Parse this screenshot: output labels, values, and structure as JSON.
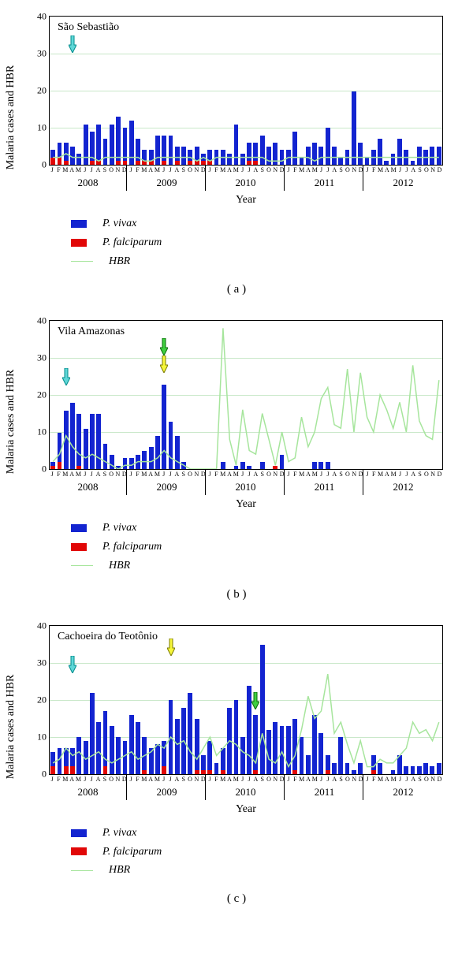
{
  "global": {
    "ylim": [
      0,
      40
    ],
    "yticks": [
      0,
      10,
      20,
      30,
      40
    ],
    "ylabel": "Malaria cases and HBR",
    "xlabel": "Year",
    "months": [
      "J",
      "F",
      "M",
      "A",
      "M",
      "J",
      "J",
      "A",
      "S",
      "O",
      "N",
      "D"
    ],
    "years": [
      "2008",
      "2009",
      "2010",
      "2011",
      "2012"
    ],
    "colors": {
      "vivax": "#1324d0",
      "falciparum": "#e10707",
      "hbr": "#a6e59c",
      "grid": "#c9e8c9",
      "text": "#000000",
      "background": "#ffffff"
    },
    "legend": [
      {
        "label": "P. vivax",
        "color": "#1324d0",
        "kind": "swatch"
      },
      {
        "label": "P. falciparum",
        "color": "#e10707",
        "kind": "swatch"
      },
      {
        "label": "HBR",
        "color": "#a6e59c",
        "kind": "line"
      }
    ],
    "arrow_colors": {
      "cyan": {
        "fill": "#5fd7d7",
        "stroke": "#008b8b"
      },
      "green": {
        "fill": "#3fcf3f",
        "stroke": "#0a6b0a"
      },
      "yellow": {
        "fill": "#f7f73a",
        "stroke": "#7a7a00"
      }
    }
  },
  "panels": [
    {
      "id": "a",
      "title": "São Sebastião",
      "label": "( a )",
      "arrows": [
        {
          "month_index": 3,
          "color": "cyan",
          "y_top": 24
        }
      ],
      "hbr": [
        2,
        2,
        3,
        2,
        2,
        2,
        2,
        1,
        2,
        2,
        2,
        2,
        2,
        2,
        1,
        1,
        2,
        2,
        2,
        2,
        2,
        2,
        1,
        2,
        1,
        2,
        2,
        2,
        2,
        2,
        2,
        2,
        2,
        1,
        1,
        1,
        2,
        2,
        2,
        2,
        1,
        2,
        2,
        2,
        2,
        2,
        2,
        2,
        2,
        2,
        2,
        2,
        2,
        2,
        2,
        2,
        2,
        2,
        2,
        2
      ],
      "vivax": [
        2,
        4,
        5,
        5,
        3,
        11,
        8,
        10,
        7,
        11,
        12,
        9,
        12,
        6,
        3,
        3,
        8,
        7,
        8,
        4,
        5,
        3,
        4,
        2,
        3,
        4,
        4,
        3,
        11,
        3,
        5,
        5,
        8,
        5,
        6,
        4,
        4,
        9,
        2,
        5,
        6,
        5,
        10,
        5,
        2,
        4,
        20,
        6,
        2,
        4,
        7,
        1,
        3,
        7,
        4,
        1,
        5,
        4,
        5,
        5
      ],
      "falciparum": [
        2,
        2,
        1,
        0,
        0,
        0,
        1,
        1,
        0,
        0,
        1,
        1,
        0,
        1,
        1,
        1,
        0,
        1,
        0,
        1,
        0,
        1,
        1,
        1,
        1,
        0,
        0,
        0,
        0,
        0,
        1,
        1,
        0,
        0,
        0,
        0,
        0,
        0,
        0,
        0,
        0,
        0,
        0,
        0,
        0,
        0,
        0,
        0,
        0,
        0,
        0,
        0,
        0,
        0,
        0,
        0,
        0,
        0,
        0,
        0
      ]
    },
    {
      "id": "b",
      "title": "Vila Amazonas",
      "label": "( b )",
      "arrows": [
        {
          "month_index": 2,
          "color": "cyan",
          "y_top": 60
        },
        {
          "month_index": 17,
          "color": "green",
          "y_top": 22
        },
        {
          "month_index": 17,
          "color": "yellow",
          "y_top": 44
        }
      ],
      "hbr": [
        2,
        4,
        9,
        6,
        4,
        3,
        4,
        3,
        2,
        1,
        0,
        1,
        1,
        2,
        2,
        2,
        3,
        5,
        3,
        2,
        1,
        0,
        0,
        0,
        0,
        0,
        38,
        8,
        1,
        16,
        5,
        4,
        15,
        8,
        1,
        10,
        2,
        3,
        14,
        6,
        10,
        19,
        22,
        12,
        11,
        27,
        10,
        26,
        14,
        10,
        20,
        16,
        11,
        18,
        10,
        28,
        13,
        9,
        8,
        24
      ],
      "vivax": [
        1,
        8,
        16,
        18,
        14,
        11,
        15,
        15,
        7,
        4,
        1,
        3,
        3,
        4,
        5,
        6,
        9,
        23,
        13,
        9,
        2,
        0,
        0,
        0,
        0,
        0,
        2,
        0,
        1,
        2,
        1,
        0,
        2,
        0,
        0,
        4,
        0,
        0,
        0,
        0,
        2,
        2,
        2,
        0,
        0,
        0,
        0,
        0,
        0,
        0,
        0,
        0,
        0,
        0,
        0,
        0,
        0,
        0,
        0,
        0
      ],
      "falciparum": [
        1,
        2,
        0,
        0,
        1,
        0,
        0,
        0,
        0,
        0,
        0,
        0,
        0,
        0,
        0,
        0,
        0,
        0,
        0,
        0,
        0,
        0,
        0,
        0,
        0,
        0,
        0,
        0,
        0,
        0,
        0,
        0,
        0,
        0,
        1,
        0,
        0,
        0,
        0,
        0,
        0,
        0,
        0,
        0,
        0,
        0,
        0,
        0,
        0,
        0,
        0,
        0,
        0,
        0,
        0,
        0,
        0,
        0,
        0,
        0
      ]
    },
    {
      "id": "c",
      "title": "Cachoeira do Teotônio",
      "label": "( c )",
      "arrows": [
        {
          "month_index": 3,
          "color": "cyan",
          "y_top": 38
        },
        {
          "month_index": 18,
          "color": "yellow",
          "y_top": 16
        },
        {
          "month_index": 31,
          "color": "green",
          "y_top": 84
        }
      ],
      "hbr": [
        3,
        4,
        7,
        5,
        6,
        4,
        5,
        6,
        4,
        3,
        4,
        5,
        6,
        4,
        5,
        6,
        8,
        7,
        10,
        8,
        9,
        6,
        4,
        7,
        10,
        5,
        7,
        9,
        8,
        6,
        5,
        3,
        11,
        4,
        3,
        6,
        2,
        5,
        12,
        21,
        15,
        17,
        27,
        11,
        14,
        8,
        3,
        9,
        2,
        2,
        4,
        3,
        3,
        5,
        7,
        14,
        11,
        12,
        9,
        14
      ],
      "vivax": [
        4,
        7,
        5,
        5,
        10,
        9,
        22,
        14,
        15,
        13,
        10,
        9,
        16,
        14,
        9,
        7,
        8,
        7,
        20,
        15,
        18,
        22,
        14,
        4,
        8,
        3,
        6,
        18,
        20,
        10,
        24,
        15,
        35,
        12,
        14,
        13,
        13,
        14,
        10,
        5,
        16,
        11,
        4,
        3,
        10,
        3,
        1,
        3,
        0,
        4,
        3,
        0,
        1,
        5,
        2,
        2,
        2,
        3,
        2,
        3
      ],
      "falciparum": [
        2,
        0,
        2,
        2,
        0,
        0,
        0,
        0,
        2,
        0,
        0,
        0,
        0,
        0,
        1,
        0,
        0,
        2,
        0,
        0,
        0,
        0,
        1,
        1,
        1,
        0,
        1,
        0,
        0,
        0,
        0,
        1,
        0,
        0,
        0,
        0,
        0,
        1,
        0,
        0,
        0,
        0,
        1,
        0,
        0,
        0,
        0,
        0,
        0,
        1,
        0,
        0,
        0,
        0,
        0,
        0,
        0,
        0,
        0,
        0
      ]
    }
  ]
}
